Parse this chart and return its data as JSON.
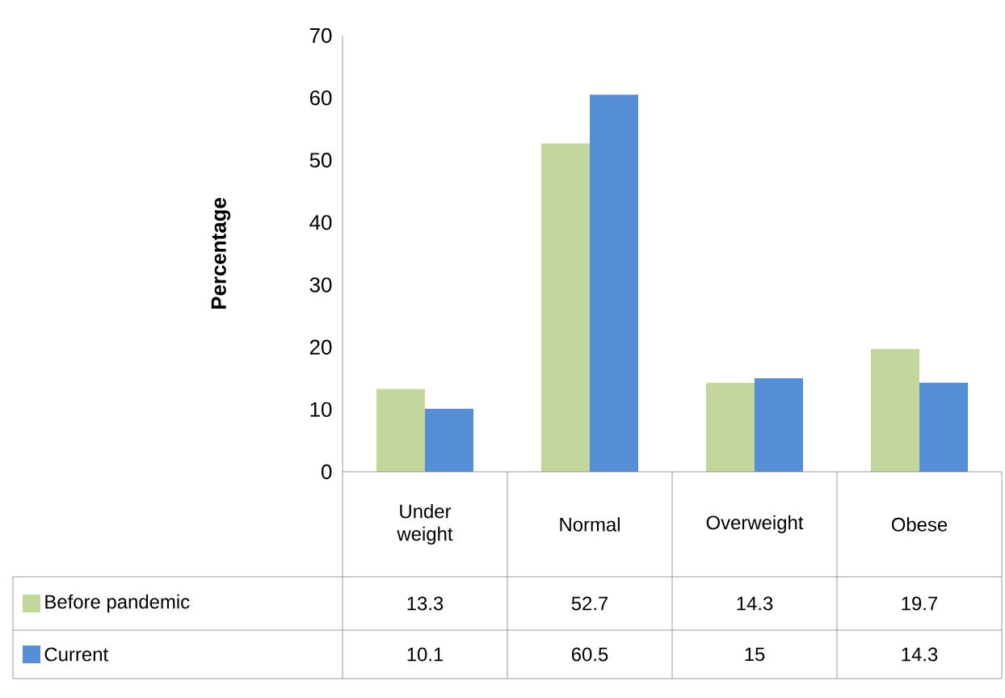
{
  "chart_data": {
    "type": "bar",
    "ylabel": "Percentage",
    "categories": [
      "Under weight",
      "Normal",
      "Overweight",
      "Obese"
    ],
    "series": [
      {
        "name": "Before pandemic",
        "color": "#c3d69b",
        "values": [
          13.3,
          52.7,
          14.3,
          19.7
        ]
      },
      {
        "name": "Current",
        "color": "#558ed5",
        "values": [
          10.1,
          60.5,
          15,
          14.3
        ]
      }
    ],
    "ylim": [
      0,
      70
    ],
    "yticks": [
      0,
      10,
      20,
      30,
      40,
      50,
      60,
      70
    ],
    "data_labels": true,
    "legend": "bottom"
  }
}
